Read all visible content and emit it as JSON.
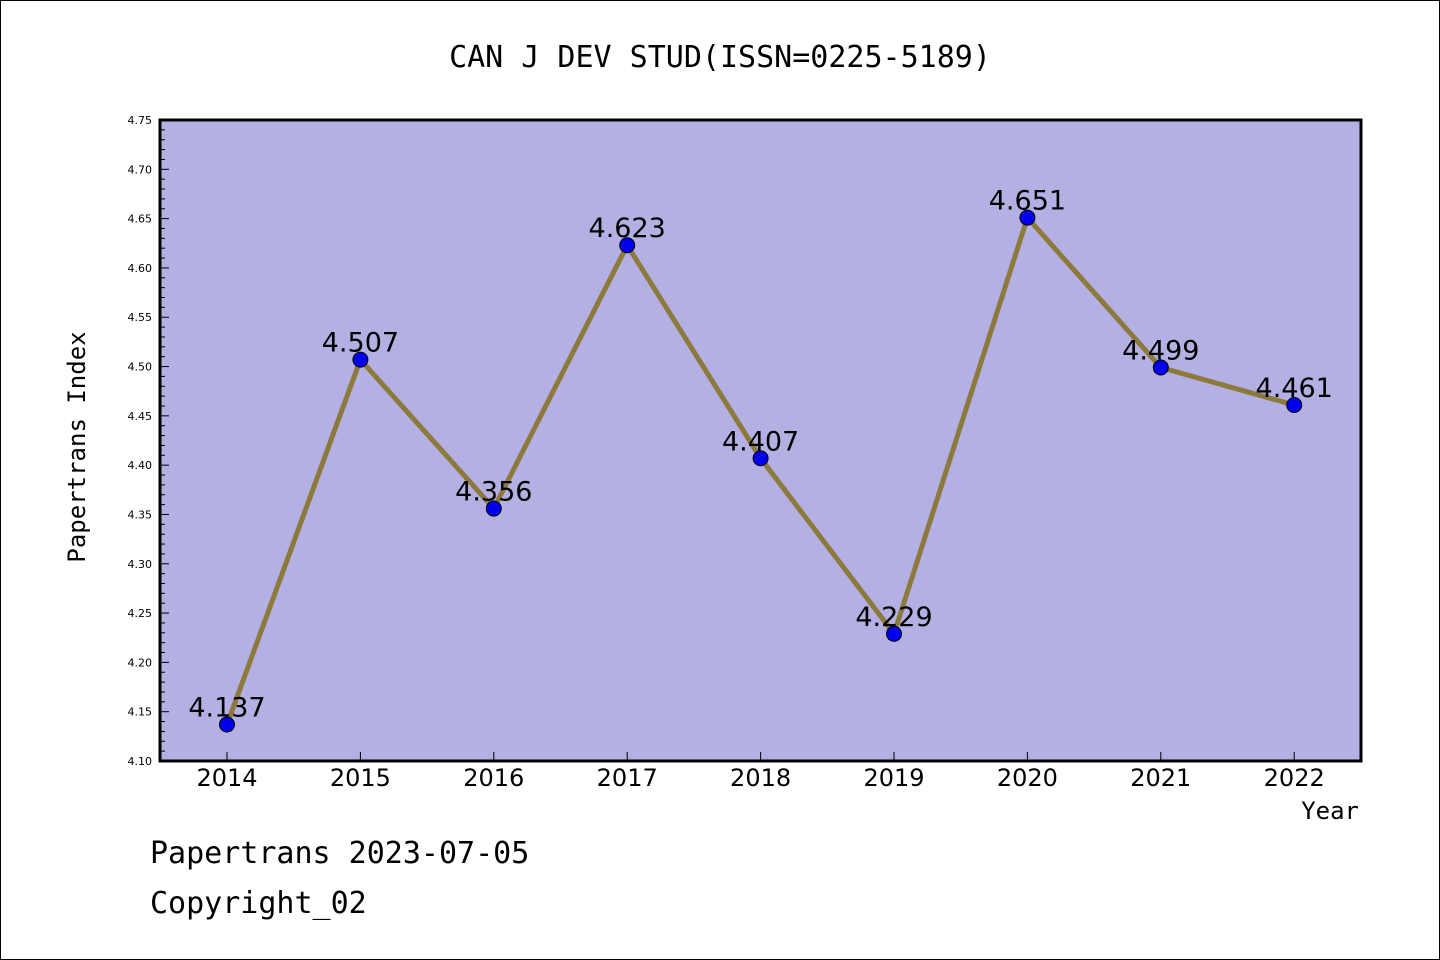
{
  "chart_data": {
    "type": "line",
    "title": "CAN J DEV STUD(ISSN=0225-5189)",
    "xlabel": "Year",
    "ylabel": "Papertrans Index",
    "x": [
      "2014",
      "2015",
      "2016",
      "2017",
      "2018",
      "2019",
      "2020",
      "2021",
      "2022"
    ],
    "series": [
      {
        "values": [
          4.137,
          4.507,
          4.356,
          4.623,
          4.407,
          4.229,
          4.651,
          4.499,
          4.461
        ],
        "data_labels": [
          "4.137",
          "4.507",
          "4.356",
          "4.623",
          "4.407",
          "4.229",
          "4.651",
          "4.499",
          "4.461"
        ]
      }
    ],
    "ylim": [
      4.1,
      4.75
    ],
    "yticks": [
      "4.10",
      "4.15",
      "4.20",
      "4.25",
      "4.30",
      "4.35",
      "4.40",
      "4.45",
      "4.50",
      "4.55",
      "4.60",
      "4.65",
      "4.70",
      "4.75"
    ],
    "grid": false,
    "legend": "none",
    "colors": {
      "plot_background": "#b5b0e3",
      "line": "#8b7a3c",
      "marker": "#0000ee",
      "axis": "#000000"
    }
  },
  "footer": {
    "date_line": "Papertrans 2023-07-05",
    "copyright": "Copyright_02"
  }
}
